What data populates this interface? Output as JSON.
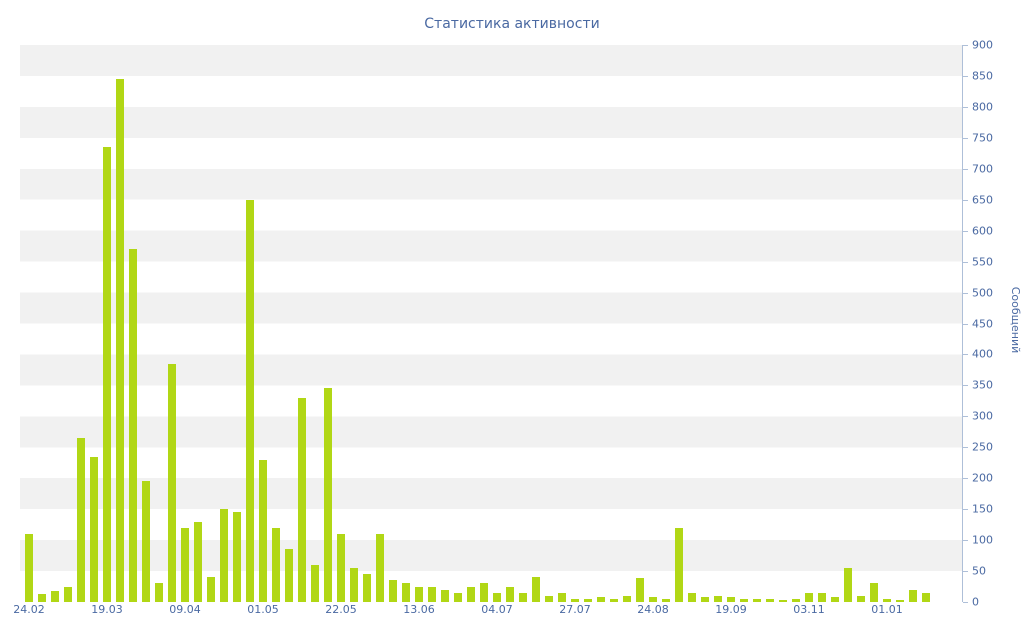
{
  "title": "Статистика активности",
  "chart_data": {
    "type": "bar",
    "title": "Статистика активности",
    "xlabel": "",
    "ylabel": "Сообщений",
    "ylim": [
      0,
      900
    ],
    "y_tick_step": 50,
    "grid": "striped-horizontal-bands",
    "legend_position": "none",
    "x_tick_labels": [
      "24.02",
      "19.03",
      "09.04",
      "01.05",
      "22.05",
      "13.06",
      "04.07",
      "27.07",
      "24.08",
      "19.09",
      "03.11",
      "01.01"
    ],
    "x_tick_indices": [
      0,
      6,
      12,
      18,
      24,
      30,
      36,
      42,
      48,
      54,
      60,
      66
    ],
    "values": [
      110,
      13,
      18,
      25,
      265,
      235,
      735,
      845,
      570,
      195,
      30,
      385,
      120,
      130,
      40,
      150,
      145,
      650,
      230,
      120,
      85,
      330,
      60,
      345,
      110,
      55,
      45,
      110,
      35,
      30,
      25,
      25,
      20,
      15,
      25,
      30,
      15,
      25,
      15,
      40,
      10,
      15,
      5,
      5,
      8,
      5,
      10,
      38,
      8,
      5,
      120,
      15,
      8,
      10,
      8,
      5,
      5,
      5,
      3,
      5,
      15,
      15,
      8,
      55,
      10,
      30,
      5,
      3,
      20,
      15
    ],
    "colors": {
      "bar": "#b1d715",
      "axis": "#aebfd8",
      "text": "#4a69a2",
      "stripe": "#f1f1f1",
      "background": "#ffffff"
    }
  }
}
